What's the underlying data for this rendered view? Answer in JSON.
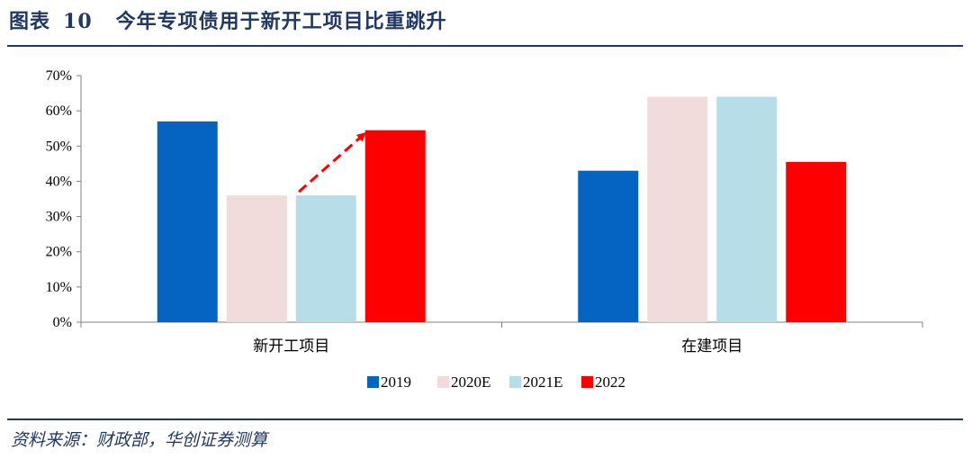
{
  "figure": {
    "label": "图表",
    "number": "10",
    "title": "今年专项债用于新开工项目比重跳升"
  },
  "source": "资料来源：财政部，华创证券测算",
  "colors": {
    "accent": "#1f3864",
    "series": [
      "#0563c1",
      "#f2dcdb",
      "#b7dee8",
      "#ff0000"
    ],
    "arrow": "#ff0000"
  },
  "chart_data": {
    "type": "bar",
    "title": "今年专项债用于新开工项目比重跳升",
    "categories": [
      "新开工项目",
      "在建项目"
    ],
    "series": [
      {
        "name": "2019",
        "values": [
          57,
          43
        ]
      },
      {
        "name": "2020E",
        "values": [
          36,
          64
        ]
      },
      {
        "name": "2021E",
        "values": [
          36,
          64
        ]
      },
      {
        "name": "2022",
        "values": [
          54.5,
          45.5
        ]
      }
    ],
    "yticks": [
      "0%",
      "10%",
      "20%",
      "30%",
      "40%",
      "50%",
      "60%",
      "70%"
    ],
    "ylim": [
      0,
      70
    ],
    "xlabel": "",
    "ylabel": "",
    "grid": false,
    "legend": "bottom-center",
    "annotations": [
      {
        "type": "dashed-arrow",
        "from": {
          "category": "新开工项目",
          "series": "2021E"
        },
        "to": {
          "category": "新开工项目",
          "series": "2022"
        }
      }
    ]
  }
}
